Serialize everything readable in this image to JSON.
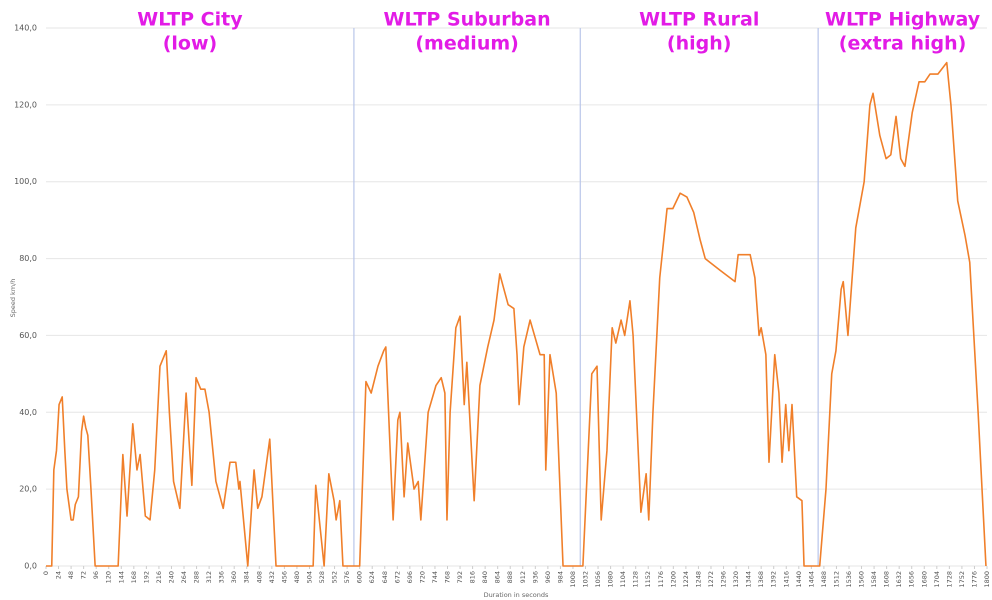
{
  "chart_data": {
    "type": "line",
    "y_label": "Speed km/h",
    "x_label": "Duration in seconds",
    "color": "#f07f2a",
    "phases": [
      {
        "name": "WLTP City",
        "level": "(low)"
      },
      {
        "name": "WLTP Suburban",
        "level": "(medium)"
      },
      {
        "name": "WLTP Rural",
        "level": "(high)"
      },
      {
        "name": "WLTP Highway",
        "level": "(extra high)"
      }
    ],
    "phase_boundaries": [
      589,
      1022,
      1477
    ],
    "x": [
      0,
      11,
      15,
      20,
      25,
      31,
      36,
      40,
      45,
      48,
      52,
      56,
      62,
      68,
      72,
      76,
      80,
      86,
      94,
      138,
      147,
      155,
      166,
      174,
      180,
      190,
      199,
      208,
      218,
      230,
      236,
      244,
      256,
      268,
      279,
      287,
      296,
      304,
      312,
      325,
      339,
      352,
      363,
      369,
      371,
      386,
      398,
      405,
      413,
      428,
      440,
      511,
      516,
      532,
      541,
      551,
      555,
      562,
      568,
      593,
      600,
      612,
      622,
      635,
      646,
      650,
      664,
      673,
      677,
      685,
      692,
      704,
      712,
      717,
      731,
      746,
      756,
      763,
      767,
      773,
      784,
      792,
      800,
      805,
      819,
      830,
      845,
      857,
      868,
      884,
      895,
      901,
      905,
      914,
      926,
      945,
      953,
      956,
      964,
      976,
      989,
      1027,
      1044,
      1054,
      1062,
      1073,
      1083,
      1090,
      1100,
      1107,
      1117,
      1123,
      1138,
      1148,
      1153,
      1161,
      1174,
      1188,
      1199,
      1213,
      1226,
      1239,
      1251,
      1261,
      1270,
      1289,
      1318,
      1324,
      1347,
      1356,
      1364,
      1368,
      1377,
      1383,
      1394,
      1402,
      1408,
      1415,
      1421,
      1427,
      1436,
      1446,
      1450,
      1480,
      1492,
      1503,
      1511,
      1521,
      1525,
      1534,
      1549,
      1565,
      1576,
      1582,
      1595,
      1607,
      1616,
      1626,
      1635,
      1643,
      1657,
      1670,
      1681,
      1691,
      1706,
      1723,
      1731,
      1744,
      1758,
      1767,
      1783,
      1798
    ],
    "values": [
      0,
      0,
      25,
      30,
      42,
      44,
      30,
      20,
      15,
      12,
      12,
      16,
      18,
      35,
      39,
      36,
      34,
      20,
      0,
      0,
      29,
      13,
      37,
      25,
      29,
      13,
      12,
      25,
      52,
      56,
      40,
      22,
      15,
      45,
      21,
      49,
      46,
      46,
      40,
      22,
      15,
      27,
      27,
      20,
      22,
      0,
      25,
      15,
      18,
      33,
      0,
      0,
      21,
      0,
      24,
      17,
      12,
      17,
      0,
      0,
      0,
      48,
      45,
      52,
      56,
      57,
      12,
      38,
      40,
      18,
      32,
      20,
      22,
      12,
      40,
      47,
      49,
      45,
      12,
      40,
      62,
      65,
      42,
      53,
      17,
      47,
      57,
      64,
      76,
      68,
      67,
      55,
      42,
      57,
      64,
      55,
      55,
      25,
      55,
      45,
      0,
      0,
      50,
      52,
      12,
      30,
      62,
      58,
      64,
      60,
      69,
      60,
      14,
      24,
      12,
      40,
      75,
      93,
      93,
      97,
      96,
      92,
      85,
      80,
      79,
      77,
      74,
      81,
      81,
      75,
      60,
      62,
      55,
      27,
      55,
      45,
      27,
      42,
      30,
      42,
      18,
      17,
      0,
      0,
      20,
      50,
      56,
      72,
      74,
      60,
      88,
      100,
      120,
      123,
      112,
      106,
      107,
      117,
      106,
      104,
      118,
      126,
      126,
      128,
      128,
      131,
      120,
      95,
      86,
      79,
      40,
      0
    ],
    "xlim": [
      0,
      1800
    ],
    "xticks": [
      0,
      24,
      48,
      72,
      96,
      120,
      144,
      168,
      192,
      216,
      240,
      264,
      288,
      312,
      336,
      360,
      384,
      408,
      432,
      456,
      480,
      504,
      528,
      552,
      576,
      600,
      624,
      648,
      672,
      696,
      720,
      744,
      768,
      792,
      816,
      840,
      864,
      888,
      912,
      936,
      960,
      984,
      1008,
      1032,
      1056,
      1080,
      1104,
      1128,
      1152,
      1176,
      1200,
      1224,
      1248,
      1272,
      1296,
      1320,
      1344,
      1368,
      1392,
      1416,
      1440,
      1464,
      1488,
      1512,
      1536,
      1560,
      1584,
      1608,
      1632,
      1656,
      1680,
      1704,
      1728,
      1752,
      1776,
      1800
    ],
    "ylim": [
      0,
      140
    ],
    "yticks": [
      {
        "value": 0,
        "label": "0,0"
      },
      {
        "value": 20,
        "label": "20,0"
      },
      {
        "value": 40,
        "label": "40,0"
      },
      {
        "value": 60,
        "label": "60,0"
      },
      {
        "value": 80,
        "label": "80,0"
      },
      {
        "value": 100,
        "label": "100,0"
      },
      {
        "value": 120,
        "label": "120,0"
      },
      {
        "value": 140,
        "label": "140,0"
      }
    ],
    "grid": true
  }
}
